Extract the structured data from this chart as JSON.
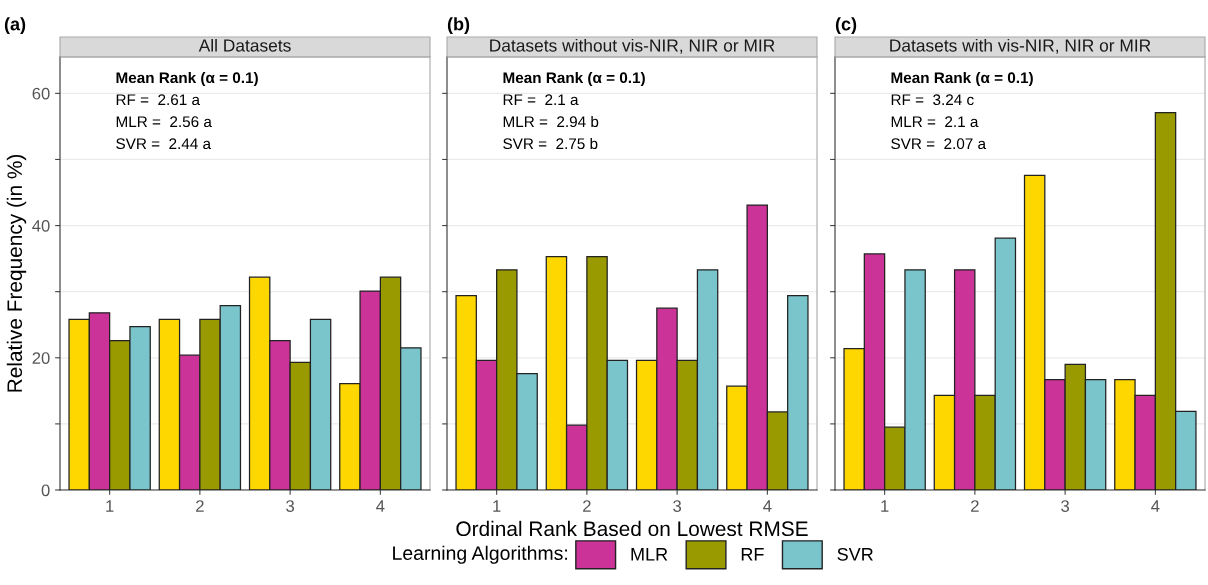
{
  "chart_data": [
    {
      "type": "bar",
      "title": "(a)",
      "subtitle": "All Datasets",
      "ylabel": "Relative Frequency (in %)",
      "categories": [
        "1",
        "2",
        "3",
        "4"
      ],
      "ylim": [
        0,
        65.5
      ],
      "yticks": [
        0,
        {
          "value": 10,
          "label": null
        },
        20,
        {
          "value": 30,
          "label": null
        },
        40,
        {
          "value": 50,
          "label": null
        },
        60
      ],
      "grid": "y",
      "annotations": [
        "Mean Rank (α = 0.1)",
        "RF =  2.61 a",
        "MLR =  2.56 a",
        "SVR =  2.44 a"
      ],
      "series": [
        {
          "color": "#ffd700",
          "values": [
            25.8,
            25.8,
            32.2,
            16.1
          ]
        },
        {
          "color": "#cc3399",
          "values": [
            26.8,
            20.4,
            22.6,
            30.1
          ]
        },
        {
          "color": "#999900",
          "values": [
            22.6,
            25.8,
            19.3,
            32.2
          ]
        },
        {
          "color": "#7ac4cc",
          "values": [
            24.7,
            27.9,
            25.8,
            21.5
          ]
        }
      ]
    },
    {
      "type": "bar",
      "title": "(b)",
      "subtitle": "Datasets without vis-NIR, NIR or MIR",
      "xlabel": "Ordinal Rank Based on Lowest RMSE",
      "categories": [
        "1",
        "2",
        "3",
        "4"
      ],
      "ylim": [
        0,
        65.5
      ],
      "yticks": [
        0,
        {
          "value": 10,
          "label": null
        },
        20,
        {
          "value": 30,
          "label": null
        },
        40,
        {
          "value": 50,
          "label": null
        },
        60
      ],
      "tick_labels": "x",
      "grid": "y",
      "legend": "bottom",
      "legend_title": "Learning Algorithms:",
      "annotations": [
        "Mean Rank (α = 0.1)",
        "RF =  2.1 a",
        "MLR =  2.94 b",
        "SVR =  2.75 b"
      ],
      "series": [
        {
          "color": "#ffd700",
          "values": [
            29.4,
            35.3,
            19.6,
            15.7
          ]
        },
        {
          "name": "MLR",
          "color": "#cc3399",
          "values": [
            19.6,
            9.8,
            27.5,
            43.1
          ]
        },
        {
          "name": "RF",
          "color": "#999900",
          "values": [
            33.3,
            35.3,
            19.6,
            11.8
          ]
        },
        {
          "name": "SVR",
          "color": "#7ac4cc",
          "values": [
            17.6,
            19.6,
            33.3,
            29.4
          ]
        }
      ]
    },
    {
      "type": "bar",
      "title": "(c)",
      "subtitle": "Datasets with vis-NIR, NIR or MIR",
      "categories": [
        "1",
        "2",
        "3",
        "4"
      ],
      "ylim": [
        0,
        65.5
      ],
      "yticks": [
        0,
        {
          "value": 10,
          "label": null
        },
        20,
        {
          "value": 30,
          "label": null
        },
        40,
        {
          "value": 50,
          "label": null
        },
        60
      ],
      "tick_labels": "x",
      "grid": "y",
      "annotations": [
        "Mean Rank (α = 0.1)",
        "RF =  3.24 c",
        "MLR =  2.1 a",
        "SVR =  2.07 a"
      ],
      "series": [
        {
          "color": "#ffd700",
          "values": [
            21.4,
            14.3,
            47.6,
            16.7
          ]
        },
        {
          "color": "#cc3399",
          "values": [
            35.7,
            33.3,
            16.7,
            14.3
          ]
        },
        {
          "color": "#999900",
          "values": [
            9.5,
            14.3,
            19.0,
            57.1
          ]
        },
        {
          "color": "#7ac4cc",
          "values": [
            33.3,
            38.1,
            16.7,
            11.9
          ]
        }
      ]
    }
  ]
}
